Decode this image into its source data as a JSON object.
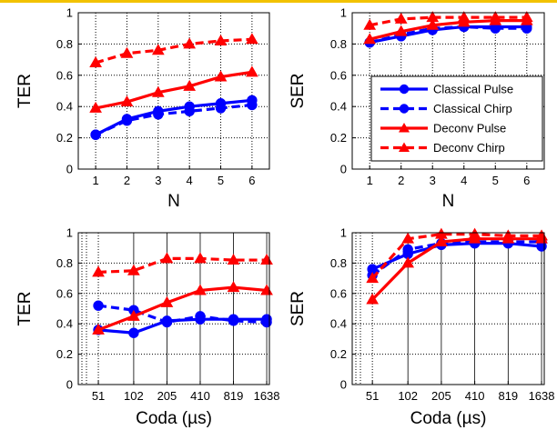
{
  "chart_data": [
    {
      "type": "line",
      "xlabel": "N",
      "ylabel": "TER",
      "x_ticks": [
        "1",
        "2",
        "3",
        "4",
        "5",
        "6"
      ],
      "y_ticks": [
        "0",
        "0.2",
        "0.4",
        "0.6",
        "0.8",
        "1"
      ],
      "ylim": [
        0,
        1
      ],
      "grid": true,
      "series": [
        {
          "name": "Classical Pulse",
          "color": "#0000ff",
          "dash": false,
          "marker": "circle",
          "values": [
            0.22,
            0.32,
            0.37,
            0.4,
            0.42,
            0.44
          ]
        },
        {
          "name": "Classical Chirp",
          "color": "#0000ff",
          "dash": true,
          "marker": "circle",
          "values": [
            0.22,
            0.31,
            0.35,
            0.37,
            0.39,
            0.41
          ]
        },
        {
          "name": "Deconv Pulse",
          "color": "#ff0000",
          "dash": false,
          "marker": "triangle",
          "values": [
            0.39,
            0.43,
            0.49,
            0.53,
            0.59,
            0.62
          ]
        },
        {
          "name": "Deconv Chirp",
          "color": "#ff0000",
          "dash": true,
          "marker": "triangle",
          "values": [
            0.68,
            0.74,
            0.76,
            0.8,
            0.82,
            0.83
          ]
        }
      ]
    },
    {
      "type": "line",
      "xlabel": "N",
      "ylabel": "SER",
      "x_ticks": [
        "1",
        "2",
        "3",
        "4",
        "5",
        "6"
      ],
      "y_ticks": [
        "0",
        "0.2",
        "0.4",
        "0.6",
        "0.8",
        "1"
      ],
      "ylim": [
        0,
        1
      ],
      "grid": true,
      "legend": "center-right",
      "series": [
        {
          "name": "Classical Pulse",
          "color": "#0000ff",
          "dash": false,
          "marker": "circle",
          "values": [
            0.81,
            0.85,
            0.89,
            0.91,
            0.91,
            0.91
          ]
        },
        {
          "name": "Classical Chirp",
          "color": "#0000ff",
          "dash": true,
          "marker": "circle",
          "values": [
            0.81,
            0.86,
            0.9,
            0.91,
            0.9,
            0.9
          ]
        },
        {
          "name": "Deconv Pulse",
          "color": "#ff0000",
          "dash": false,
          "marker": "triangle",
          "values": [
            0.83,
            0.88,
            0.92,
            0.94,
            0.95,
            0.95
          ]
        },
        {
          "name": "Deconv Chirp",
          "color": "#ff0000",
          "dash": true,
          "marker": "triangle",
          "values": [
            0.92,
            0.96,
            0.97,
            0.97,
            0.97,
            0.97
          ]
        }
      ]
    },
    {
      "type": "line",
      "xlabel": "Coda (µs)",
      "ylabel": "TER",
      "x_ticks": [
        "51",
        "102",
        "205",
        "410",
        "819",
        "1638"
      ],
      "y_ticks": [
        "0",
        "0.2",
        "0.4",
        "0.6",
        "0.8",
        "1"
      ],
      "ylim": [
        0,
        1
      ],
      "grid": true,
      "series": [
        {
          "name": "Classical Pulse",
          "color": "#0000ff",
          "dash": false,
          "marker": "circle",
          "values": [
            0.36,
            0.34,
            0.42,
            0.43,
            0.43,
            0.43
          ]
        },
        {
          "name": "Classical Chirp",
          "color": "#0000ff",
          "dash": true,
          "marker": "circle",
          "values": [
            0.52,
            0.49,
            0.41,
            0.45,
            0.42,
            0.41
          ]
        },
        {
          "name": "Deconv Pulse",
          "color": "#ff0000",
          "dash": false,
          "marker": "triangle",
          "values": [
            0.36,
            0.45,
            0.54,
            0.62,
            0.64,
            0.62
          ]
        },
        {
          "name": "Deconv Chirp",
          "color": "#ff0000",
          "dash": true,
          "marker": "triangle",
          "values": [
            0.74,
            0.75,
            0.83,
            0.83,
            0.82,
            0.82
          ]
        }
      ]
    },
    {
      "type": "line",
      "xlabel": "Coda (µs)",
      "ylabel": "SER",
      "x_ticks": [
        "51",
        "102",
        "205",
        "410",
        "819",
        "1638"
      ],
      "y_ticks": [
        "0",
        "0.2",
        "0.4",
        "0.6",
        "0.8",
        "1"
      ],
      "ylim": [
        0,
        1
      ],
      "grid": true,
      "series": [
        {
          "name": "Classical Pulse",
          "color": "#0000ff",
          "dash": false,
          "marker": "circle",
          "values": [
            0.76,
            0.86,
            0.92,
            0.93,
            0.93,
            0.91
          ]
        },
        {
          "name": "Classical Chirp",
          "color": "#0000ff",
          "dash": true,
          "marker": "circle",
          "values": [
            0.72,
            0.89,
            0.93,
            0.94,
            0.94,
            0.94
          ]
        },
        {
          "name": "Deconv Pulse",
          "color": "#ff0000",
          "dash": false,
          "marker": "triangle",
          "values": [
            0.56,
            0.8,
            0.94,
            0.96,
            0.96,
            0.96
          ]
        },
        {
          "name": "Deconv Chirp",
          "color": "#ff0000",
          "dash": true,
          "marker": "triangle",
          "values": [
            0.7,
            0.96,
            0.99,
            0.99,
            0.98,
            0.98
          ]
        }
      ]
    }
  ]
}
